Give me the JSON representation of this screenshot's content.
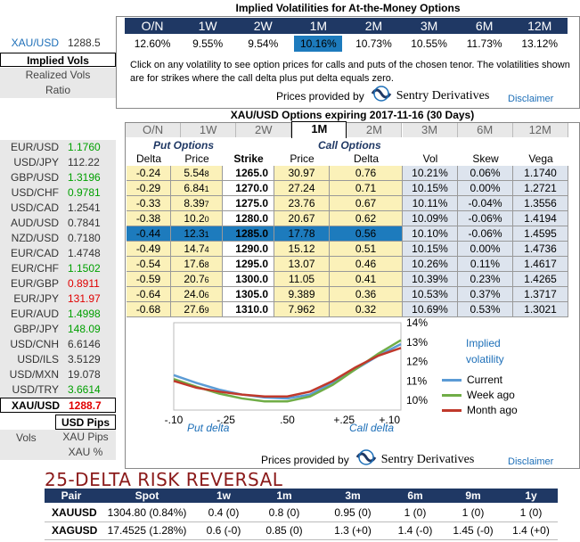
{
  "left": {
    "gold": {
      "pair": "XAU/USD",
      "price": "1288.5"
    },
    "tabs": [
      "Implied Vols",
      "Realized Vols",
      "Ratio"
    ],
    "pairs": [
      {
        "pair": "EUR/USD",
        "price": "1.1760",
        "color": "#00a000"
      },
      {
        "pair": "USD/JPY",
        "price": "112.22",
        "color": "#333333"
      },
      {
        "pair": "GBP/USD",
        "price": "1.3196",
        "color": "#00a000"
      },
      {
        "pair": "USD/CHF",
        "price": "0.9781",
        "color": "#00a000"
      },
      {
        "pair": "USD/CAD",
        "price": "1.2541",
        "color": "#333333"
      },
      {
        "pair": "AUD/USD",
        "price": "0.7841",
        "color": "#333333"
      },
      {
        "pair": "NZD/USD",
        "price": "0.7180",
        "color": "#333333"
      },
      {
        "pair": "EUR/CAD",
        "price": "1.4748",
        "color": "#333333"
      },
      {
        "pair": "EUR/CHF",
        "price": "1.1502",
        "color": "#00a000"
      },
      {
        "pair": "EUR/GBP",
        "price": "0.8911",
        "color": "#e00000"
      },
      {
        "pair": "EUR/JPY",
        "price": "131.97",
        "color": "#e00000"
      },
      {
        "pair": "EUR/AUD",
        "price": "1.4998",
        "color": "#00a000"
      },
      {
        "pair": "GBP/JPY",
        "price": "148.09",
        "color": "#00a000"
      },
      {
        "pair": "USD/CNH",
        "price": "6.6146",
        "color": "#333333"
      },
      {
        "pair": "USD/ILS",
        "price": "3.5129",
        "color": "#333333"
      },
      {
        "pair": "USD/MXN",
        "price": "19.078",
        "color": "#333333"
      },
      {
        "pair": "USD/TRY",
        "price": "3.6614",
        "color": "#00a000"
      },
      {
        "pair": "XAU/USD",
        "price": "1288.7",
        "color": "#e00000"
      }
    ],
    "bottom": {
      "usd_pips": "USD Pips",
      "vols": "Vols",
      "xau_pips": "XAU Pips",
      "xau_pct": "XAU %"
    }
  },
  "implied": {
    "title": "Implied Volatilities for At-the-Money Options",
    "tenors": [
      "O/N",
      "1W",
      "2W",
      "1M",
      "2M",
      "3M",
      "6M",
      "12M"
    ],
    "vols": [
      "12.60%",
      "9.55%",
      "9.54%",
      "10.16%",
      "10.73%",
      "10.55%",
      "11.73%",
      "13.12%"
    ],
    "note": "Click on any volatility to see option prices for calls and puts of the chosen tenor. The volatilities shown are for strikes where the call delta plus put delta equals zero.",
    "provided": "Prices provided by",
    "brand": "Sentry Derivatives",
    "disclaimer": "Disclaimer"
  },
  "options": {
    "title": "XAU/USD Options expiring 2017-11-16 (30 Days)",
    "tabs": [
      "O/N",
      "1W",
      "2W",
      "1M",
      "2M",
      "3M",
      "6M",
      "12M"
    ],
    "put_label": "Put Options",
    "call_label": "Call Options",
    "headers": [
      "Delta",
      "Price",
      "Strike",
      "Price",
      "Delta",
      "Vol",
      "Skew",
      "Vega"
    ],
    "rows": [
      {
        "pd": "-0.24",
        "pp": "5.54",
        "pps": "8",
        "k": "1265.0",
        "cp": "30.97",
        "cps": "",
        "cd": "0.76",
        "vol": "10.21%",
        "skew": "0.06%",
        "vega": "1.1740"
      },
      {
        "pd": "-0.29",
        "pp": "6.84",
        "pps": "1",
        "k": "1270.0",
        "cp": "27.24",
        "cps": "",
        "cd": "0.71",
        "vol": "10.15%",
        "skew": "0.00%",
        "vega": "1.2721"
      },
      {
        "pd": "-0.33",
        "pp": "8.39",
        "pps": "7",
        "k": "1275.0",
        "cp": "23.76",
        "cps": "",
        "cd": "0.67",
        "vol": "10.11%",
        "skew": "-0.04%",
        "vega": "1.3556"
      },
      {
        "pd": "-0.38",
        "pp": "10.2",
        "pps": "0",
        "k": "1280.0",
        "cp": "20.67",
        "cps": "",
        "cd": "0.62",
        "vol": "10.09%",
        "skew": "-0.06%",
        "vega": "1.4194"
      },
      {
        "pd": "-0.44",
        "pp": "12.3",
        "pps": "1",
        "k": "1285.0",
        "cp": "17.78",
        "cps": "",
        "cd": "0.56",
        "vol": "10.10%",
        "skew": "-0.06%",
        "vega": "1.4595"
      },
      {
        "pd": "-0.49",
        "pp": "14.7",
        "pps": "4",
        "k": "1290.0",
        "cp": "15.12",
        "cps": "",
        "cd": "0.51",
        "vol": "10.15%",
        "skew": "0.00%",
        "vega": "1.4736"
      },
      {
        "pd": "-0.54",
        "pp": "17.6",
        "pps": "8",
        "k": "1295.0",
        "cp": "13.07",
        "cps": "",
        "cd": "0.46",
        "vol": "10.26%",
        "skew": "0.11%",
        "vega": "1.4617"
      },
      {
        "pd": "-0.59",
        "pp": "20.7",
        "pps": "6",
        "k": "1300.0",
        "cp": "11.05",
        "cps": "",
        "cd": "0.41",
        "vol": "10.39%",
        "skew": "0.23%",
        "vega": "1.4265"
      },
      {
        "pd": "-0.64",
        "pp": "24.0",
        "pps": "6",
        "k": "1305.0",
        "cp": "9.389",
        "cps": "",
        "cd": "0.36",
        "vol": "10.53%",
        "skew": "0.37%",
        "vega": "1.3717"
      },
      {
        "pd": "-0.68",
        "pp": "27.6",
        "pps": "9",
        "k": "1310.0",
        "cp": "7.962",
        "cps": "",
        "cd": "0.32",
        "vol": "10.69%",
        "skew": "0.53%",
        "vega": "1.3021"
      }
    ]
  },
  "chart_data": {
    "type": "line",
    "x_ticks": [
      "-.10",
      "-.25",
      ".50",
      "+.25",
      "+.10"
    ],
    "y_ticks": [
      "14%",
      "13%",
      "12%",
      "11%",
      "10%"
    ],
    "ylim": [
      9.5,
      14
    ],
    "x": [
      0,
      1,
      2,
      3,
      4,
      5,
      6,
      7,
      8,
      9,
      10
    ],
    "legend_title": "Implied volatility",
    "xlabel_left": "Put delta",
    "xlabel_right": "Call delta",
    "series": [
      {
        "name": "Current",
        "color": "#5b9bd5",
        "values": [
          11.3,
          10.9,
          10.55,
          10.3,
          10.15,
          10.1,
          10.3,
          10.9,
          11.6,
          12.3,
          12.9
        ]
      },
      {
        "name": "Week ago",
        "color": "#70ad47",
        "values": [
          11.1,
          10.7,
          10.35,
          10.1,
          9.95,
          9.95,
          10.2,
          10.8,
          11.6,
          12.4,
          13.1
        ]
      },
      {
        "name": "Month ago",
        "color": "#c0392b",
        "values": [
          11.0,
          10.65,
          10.45,
          10.3,
          10.2,
          10.2,
          10.45,
          11.0,
          11.7,
          12.3,
          12.7
        ]
      }
    ]
  },
  "risk_reversal": {
    "title": "25-DELTA RISK REVERSAL",
    "headers": [
      "Pair",
      "Spot",
      "1w",
      "1m",
      "3m",
      "6m",
      "9m",
      "1y"
    ],
    "rows": [
      [
        "XAUUSD",
        "1304.80 (0.84%)",
        "0.4 (0)",
        "0.8 (0)",
        "0.95 (0)",
        "1 (0)",
        "1 (0)",
        "1 (0)"
      ],
      [
        "XAGUSD",
        "17.4525 (1.28%)",
        "0.6 (-0)",
        "0.85 (0)",
        "1.3 (+0)",
        "1.4 (-0)",
        "1.45 (-0)",
        "1.4 (+0)"
      ]
    ]
  }
}
